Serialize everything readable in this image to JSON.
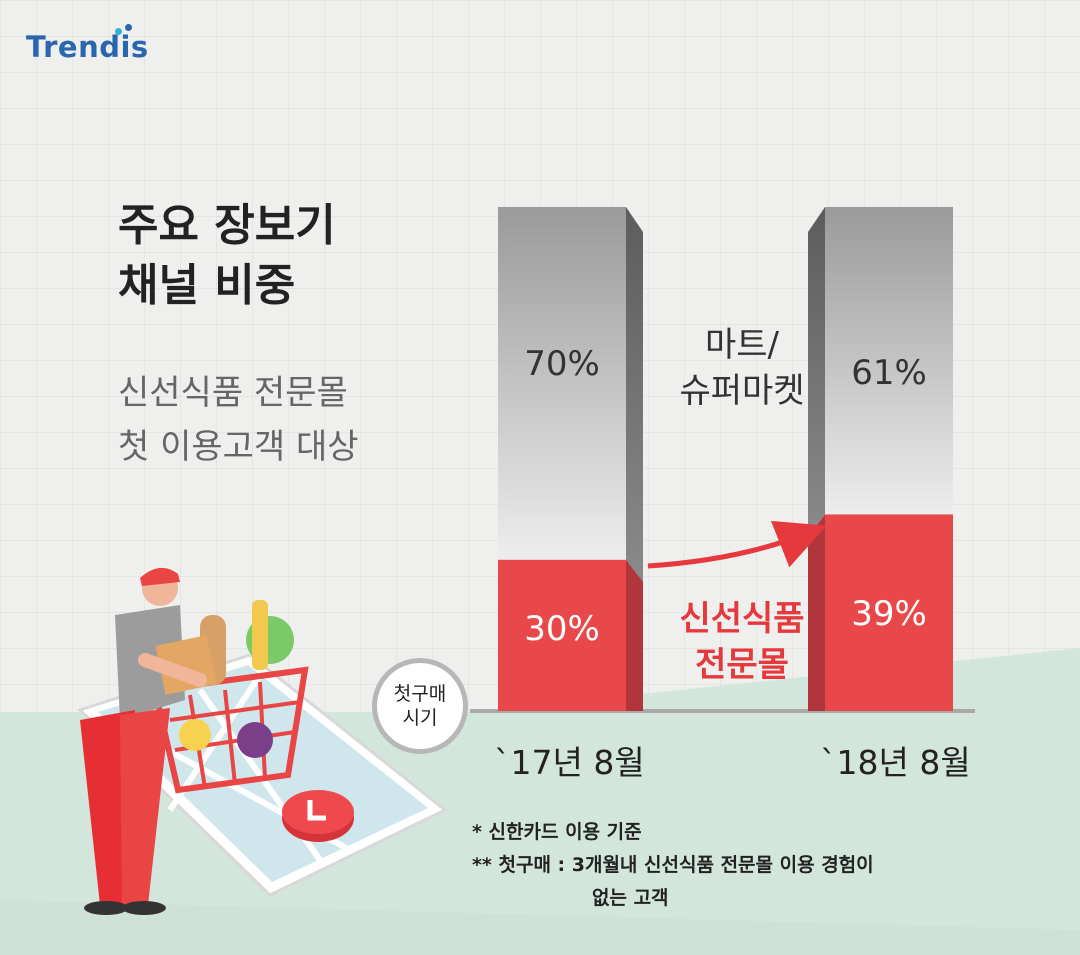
{
  "logo": {
    "text": "Trendis"
  },
  "heading": {
    "line1": "주요 장보기",
    "line2": "채널 비중"
  },
  "subheading": {
    "line1": "신선식품 전문몰",
    "line2": "첫 이용고객 대상"
  },
  "badge": {
    "line1": "첫구매",
    "line2": "시기"
  },
  "colors": {
    "red": "#e8484a",
    "red_dark": "#b0363b",
    "grey_top": "#999999",
    "grey_bottom": "#ececec",
    "accent_text": "#e5393d"
  },
  "chart_data": {
    "type": "bar",
    "stacked": true,
    "categories": [
      "`17년 8월",
      "`18년 8월"
    ],
    "series": [
      {
        "name": "마트/ 슈퍼마켓",
        "values": [
          70,
          61
        ],
        "labels": [
          "70%",
          "61%"
        ]
      },
      {
        "name": "신선식품 전문몰",
        "values": [
          30,
          39
        ],
        "labels": [
          "30%",
          "39%"
        ]
      }
    ],
    "ylim": [
      0,
      100
    ],
    "series_labels": {
      "grey_line1": "마트/",
      "grey_line2": "슈퍼마켓",
      "red_line1": "신선식품",
      "red_line2": "전문몰"
    }
  },
  "notes": {
    "line1": "*  신한카드 이용 기준",
    "line2": "**  첫구매 :  3개월내 신선식품 전문몰 이용 경험이",
    "line3": "없는 고객"
  }
}
